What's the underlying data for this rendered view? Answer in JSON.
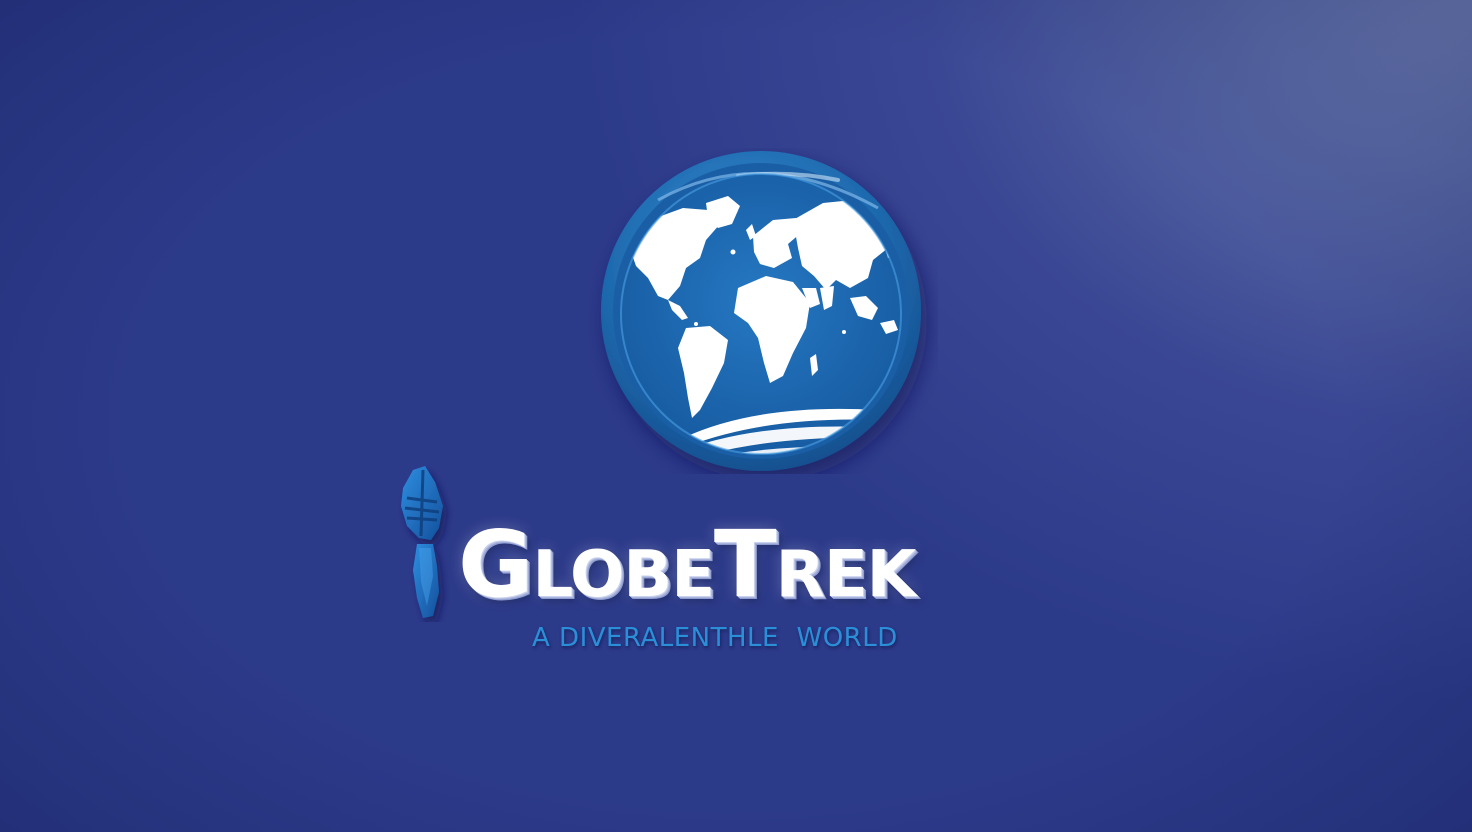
{
  "brand": {
    "name": "GlobeTrek",
    "tagline": "A DIVERALENTHLE  WORLD"
  },
  "icons": {
    "emblem": "globe-icon",
    "mark": "hiking-boot-icon"
  },
  "colors": {
    "background": "#3a4794",
    "globe_ring": "#1f6bb0",
    "globe_ocean": "#1b68b3",
    "land": "#ffffff",
    "tagline": "#2b8fd8",
    "wordmark": "#ffffff"
  }
}
